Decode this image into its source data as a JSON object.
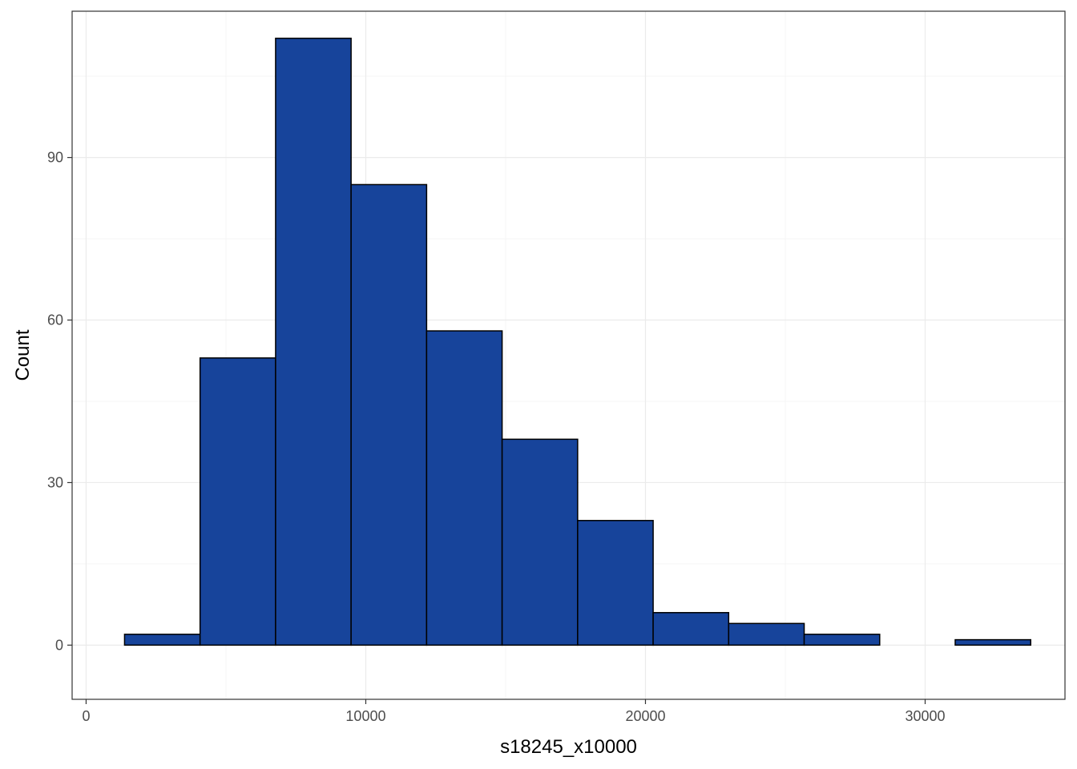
{
  "chart_data": {
    "type": "bar",
    "subtype": "histogram",
    "title": "",
    "xlabel": "s18245_x10000",
    "ylabel": "Count",
    "xlim": [
      -500,
      35000
    ],
    "ylim": [
      -10,
      117
    ],
    "x_ticks": [
      0,
      10000,
      20000,
      30000
    ],
    "y_ticks": [
      0,
      30,
      60,
      90
    ],
    "grid": true,
    "legend": "none",
    "bins": [
      {
        "x0": 1375,
        "x1": 4075,
        "count": 2
      },
      {
        "x0": 4075,
        "x1": 6775,
        "count": 53
      },
      {
        "x0": 6775,
        "x1": 9475,
        "count": 112
      },
      {
        "x0": 9475,
        "x1": 12175,
        "count": 85
      },
      {
        "x0": 12175,
        "x1": 14875,
        "count": 58
      },
      {
        "x0": 14875,
        "x1": 17575,
        "count": 38
      },
      {
        "x0": 17575,
        "x1": 20275,
        "count": 23
      },
      {
        "x0": 20275,
        "x1": 22975,
        "count": 6
      },
      {
        "x0": 22975,
        "x1": 25675,
        "count": 4
      },
      {
        "x0": 25675,
        "x1": 28375,
        "count": 2
      },
      {
        "x0": 28375,
        "x1": 31075,
        "count": 0
      },
      {
        "x0": 31075,
        "x1": 33775,
        "count": 1
      }
    ],
    "colors": {
      "bar_fill": "#17449B",
      "bar_stroke": "#000000",
      "grid_major": "#EBEBEB",
      "grid_minor": "#F5F5F5",
      "panel_border": "#333333"
    }
  }
}
